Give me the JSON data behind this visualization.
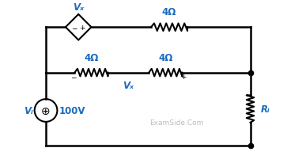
{
  "bg_color": "#ffffff",
  "wire_color": "#000000",
  "component_color": "#000000",
  "text_color": "#1a6bbf",
  "watermark_color": "#b0b0b0",
  "label_Vx_source": "Vₓ",
  "label_R1": "4Ω",
  "label_R2": "4Ω",
  "label_R3": "4Ω",
  "label_Vx": "Vₓ",
  "label_Vi": "Vᵢ",
  "label_Vsrc": "100V",
  "label_RL": "Rₗ",
  "watermark": "ExamSide.Com"
}
